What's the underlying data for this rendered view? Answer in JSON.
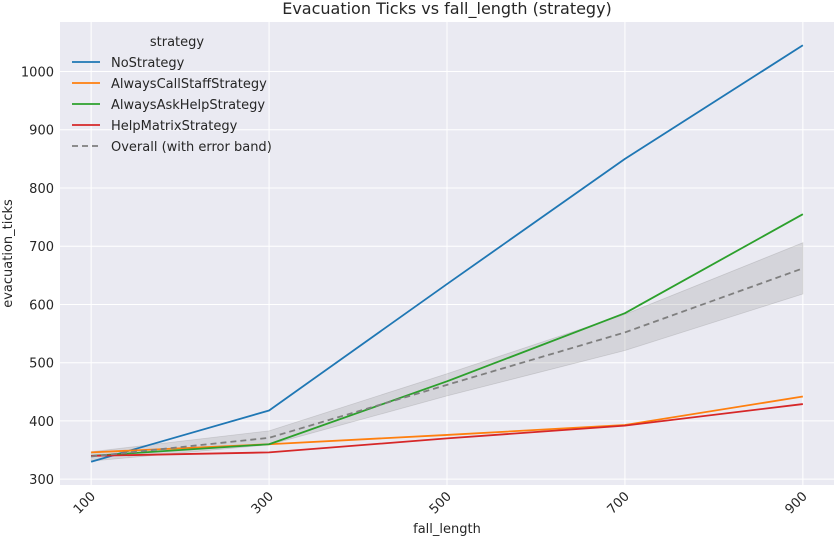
{
  "chart_data": {
    "type": "line",
    "title": "Evacuation Ticks vs fall_length (strategy)",
    "xlabel": "fall_length",
    "ylabel": "evacuation_ticks",
    "x": [
      100,
      300,
      500,
      700,
      900
    ],
    "xticks": [
      "100",
      "300",
      "500",
      "700",
      "900"
    ],
    "yticks": [
      "300",
      "400",
      "500",
      "600",
      "700",
      "800",
      "900",
      "1000"
    ],
    "xlim": [
      65,
      935
    ],
    "ylim": [
      290,
      1085
    ],
    "grid": true,
    "legend_title": "strategy",
    "legend_position": "top-left",
    "series": [
      {
        "name": "NoStrategy",
        "color": "#1f77b4",
        "values": [
          330,
          418,
          635,
          850,
          1045
        ]
      },
      {
        "name": "AlwaysCallStaffStrategy",
        "color": "#ff7f0e",
        "values": [
          346,
          360,
          376,
          393,
          442
        ]
      },
      {
        "name": "AlwaysAskHelpStrategy",
        "color": "#2ca02c",
        "values": [
          340,
          360,
          468,
          585,
          755
        ]
      },
      {
        "name": "HelpMatrixStrategy",
        "color": "#d62728",
        "values": [
          340,
          346,
          370,
          392,
          429
        ]
      }
    ],
    "overall": {
      "name": "Overall (with error band)",
      "color": "#7f7f7f",
      "values": [
        339,
        371,
        462,
        552,
        662
      ],
      "band_lower": [
        331,
        359,
        443,
        521,
        618
      ],
      "band_upper": [
        347,
        383,
        481,
        583,
        706
      ]
    }
  }
}
